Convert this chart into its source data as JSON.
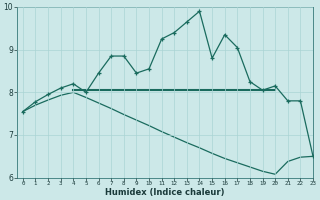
{
  "title": "",
  "xlabel": "Humidex (Indice chaleur)",
  "ylabel": "",
  "background_color": "#cce8e8",
  "line_color": "#1a6b5e",
  "grid_color": "#aad4d4",
  "x_ticks": [
    0,
    1,
    2,
    3,
    4,
    5,
    6,
    7,
    8,
    9,
    10,
    11,
    12,
    13,
    14,
    15,
    16,
    17,
    18,
    19,
    20,
    21,
    22,
    23
  ],
  "ylim": [
    6,
    10
  ],
  "xlim": [
    -0.5,
    23
  ],
  "yticks": [
    6,
    7,
    8,
    9,
    10
  ],
  "series": [
    {
      "x": [
        0,
        1,
        2,
        3,
        4,
        5,
        6,
        7,
        8,
        9,
        10,
        11,
        12,
        13,
        14,
        15,
        16,
        17,
        18,
        19,
        20,
        21,
        22,
        23
      ],
      "y": [
        7.55,
        7.78,
        7.95,
        8.1,
        8.2,
        8.0,
        8.45,
        8.85,
        8.85,
        8.45,
        8.55,
        9.25,
        9.4,
        9.65,
        9.9,
        8.8,
        9.35,
        9.05,
        8.25,
        8.05,
        8.15,
        7.8,
        7.8,
        6.5
      ],
      "marker": true,
      "linewidth": 0.9
    },
    {
      "x": [
        4,
        20
      ],
      "y": [
        8.05,
        8.05
      ],
      "marker": false,
      "linewidth": 1.5
    },
    {
      "x": [
        0,
        1,
        2,
        3,
        4,
        5,
        6,
        7,
        8,
        9,
        10,
        11,
        12,
        13,
        14,
        15,
        16,
        17,
        18,
        19,
        20,
        21,
        22,
        23
      ],
      "y": [
        7.55,
        7.7,
        7.82,
        7.93,
        8.0,
        7.88,
        7.75,
        7.62,
        7.48,
        7.35,
        7.22,
        7.08,
        6.95,
        6.82,
        6.7,
        6.57,
        6.45,
        6.35,
        6.25,
        6.15,
        6.08,
        6.38,
        6.48,
        6.5
      ],
      "marker": false,
      "linewidth": 0.9
    }
  ]
}
